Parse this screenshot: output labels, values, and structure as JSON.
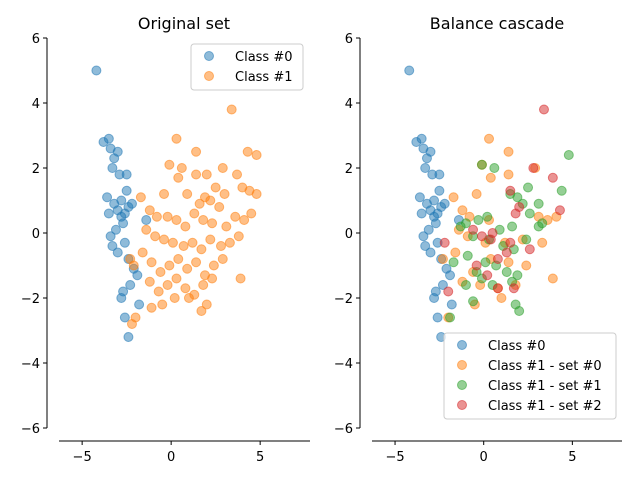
{
  "chart_data": [
    {
      "type": "scatter",
      "title": "Original set",
      "xlim": [
        -6.3,
        7.8
      ],
      "ylim": [
        -6,
        6
      ],
      "xticks": [
        -5,
        0,
        5
      ],
      "yticks": [
        -6,
        -4,
        -2,
        0,
        2,
        4,
        6
      ],
      "legend": "top-right",
      "series": [
        {
          "name": "Class #0",
          "color": "#1f77b4",
          "points": [
            [
              -4.2,
              5.0
            ],
            [
              -3.8,
              2.8
            ],
            [
              -3.5,
              2.9
            ],
            [
              -3.4,
              2.6
            ],
            [
              -3.2,
              2.3
            ],
            [
              -3.0,
              2.5
            ],
            [
              -3.3,
              2.0
            ],
            [
              -2.9,
              1.8
            ],
            [
              -2.5,
              1.8
            ],
            [
              -2.5,
              1.3
            ],
            [
              -2.8,
              1.0
            ],
            [
              -3.2,
              0.9
            ],
            [
              -3.0,
              0.7
            ],
            [
              -2.8,
              0.5
            ],
            [
              -2.6,
              0.6
            ],
            [
              -2.4,
              0.8
            ],
            [
              -2.7,
              0.3
            ],
            [
              -3.1,
              0.1
            ],
            [
              -3.4,
              -0.1
            ],
            [
              -3.3,
              -0.4
            ],
            [
              -3.0,
              -0.6
            ],
            [
              -2.6,
              -0.3
            ],
            [
              -2.4,
              -0.8
            ],
            [
              -2.1,
              -1.1
            ],
            [
              -1.9,
              -1.3
            ],
            [
              -2.3,
              -1.6
            ],
            [
              -2.7,
              -1.8
            ],
            [
              -2.8,
              -2.0
            ],
            [
              -2.6,
              -2.6
            ],
            [
              -2.4,
              -3.2
            ],
            [
              -1.8,
              -2.2
            ],
            [
              -1.4,
              0.4
            ],
            [
              -3.6,
              1.1
            ],
            [
              -3.5,
              0.6
            ],
            [
              -2.2,
              0.9
            ]
          ]
        },
        {
          "name": "Class #1",
          "color": "#ff7f0e",
          "points": [
            [
              3.4,
              3.8
            ],
            [
              0.3,
              2.9
            ],
            [
              1.4,
              2.5
            ],
            [
              4.3,
              2.5
            ],
            [
              4.8,
              2.4
            ],
            [
              -0.1,
              2.1
            ],
            [
              0.6,
              2.0
            ],
            [
              2.9,
              2.0
            ],
            [
              3.7,
              1.8
            ],
            [
              0.4,
              1.7
            ],
            [
              1.4,
              1.8
            ],
            [
              2.0,
              1.8
            ],
            [
              4.0,
              1.4
            ],
            [
              4.4,
              1.3
            ],
            [
              4.8,
              1.2
            ],
            [
              2.5,
              1.4
            ],
            [
              3.0,
              1.2
            ],
            [
              1.9,
              1.1
            ],
            [
              1.6,
              0.9
            ],
            [
              2.2,
              1.0
            ],
            [
              0.9,
              1.2
            ],
            [
              -0.4,
              1.2
            ],
            [
              -1.7,
              1.1
            ],
            [
              -1.2,
              0.7
            ],
            [
              -0.8,
              0.5
            ],
            [
              -0.2,
              0.5
            ],
            [
              0.3,
              0.4
            ],
            [
              0.8,
              0.2
            ],
            [
              1.3,
              0.6
            ],
            [
              1.8,
              0.4
            ],
            [
              2.3,
              0.3
            ],
            [
              2.7,
              0.8
            ],
            [
              3.1,
              0.2
            ],
            [
              3.6,
              0.5
            ],
            [
              4.1,
              0.4
            ],
            [
              4.5,
              0.6
            ],
            [
              -1.4,
              0.1
            ],
            [
              -0.9,
              -0.1
            ],
            [
              -0.4,
              -0.2
            ],
            [
              0.1,
              -0.3
            ],
            [
              0.7,
              -0.4
            ],
            [
              1.2,
              -0.3
            ],
            [
              1.7,
              -0.5
            ],
            [
              2.2,
              -0.2
            ],
            [
              2.8,
              -0.4
            ],
            [
              3.3,
              -0.3
            ],
            [
              3.8,
              -0.1
            ],
            [
              -1.6,
              -0.6
            ],
            [
              -1.1,
              -0.9
            ],
            [
              -0.6,
              -1.2
            ],
            [
              -0.1,
              -1.0
            ],
            [
              0.4,
              -0.8
            ],
            [
              0.9,
              -1.1
            ],
            [
              1.4,
              -0.9
            ],
            [
              1.9,
              -1.3
            ],
            [
              2.4,
              -1.0
            ],
            [
              2.9,
              -0.8
            ],
            [
              3.9,
              -1.4
            ],
            [
              -1.2,
              -1.5
            ],
            [
              -0.7,
              -1.8
            ],
            [
              -0.2,
              -1.6
            ],
            [
              0.3,
              -1.4
            ],
            [
              0.8,
              -1.7
            ],
            [
              1.3,
              -1.9
            ],
            [
              1.8,
              -1.6
            ],
            [
              2.3,
              -1.4
            ],
            [
              -0.5,
              -2.2
            ],
            [
              0.2,
              -2.0
            ],
            [
              1.0,
              -2.0
            ],
            [
              1.7,
              -2.4
            ],
            [
              2.0,
              -2.2
            ],
            [
              -2.0,
              -2.6
            ],
            [
              -1.1,
              -2.3
            ],
            [
              -2.2,
              -2.8
            ],
            [
              -2.3,
              -0.8
            ],
            [
              -2.1,
              -1.0
            ]
          ]
        }
      ]
    },
    {
      "type": "scatter",
      "title": "Balance cascade",
      "xlim": [
        -6.3,
        7.8
      ],
      "ylim": [
        -6,
        6
      ],
      "xticks": [
        -5,
        0,
        5
      ],
      "yticks": [
        -6,
        -4,
        -2,
        0,
        2,
        4,
        6
      ],
      "legend": "bottom-right",
      "series": [
        {
          "name": "Class #0",
          "color": "#1f77b4",
          "points": [
            [
              -4.2,
              5.0
            ],
            [
              -3.8,
              2.8
            ],
            [
              -3.5,
              2.9
            ],
            [
              -3.4,
              2.6
            ],
            [
              -3.2,
              2.3
            ],
            [
              -3.0,
              2.5
            ],
            [
              -3.3,
              2.0
            ],
            [
              -2.9,
              1.8
            ],
            [
              -2.5,
              1.8
            ],
            [
              -2.5,
              1.3
            ],
            [
              -2.8,
              1.0
            ],
            [
              -3.2,
              0.9
            ],
            [
              -3.0,
              0.7
            ],
            [
              -2.8,
              0.5
            ],
            [
              -2.6,
              0.6
            ],
            [
              -2.4,
              0.8
            ],
            [
              -2.7,
              0.3
            ],
            [
              -3.1,
              0.1
            ],
            [
              -3.4,
              -0.1
            ],
            [
              -3.3,
              -0.4
            ],
            [
              -3.0,
              -0.6
            ],
            [
              -2.6,
              -0.3
            ],
            [
              -2.4,
              -0.8
            ],
            [
              -2.1,
              -1.1
            ],
            [
              -1.9,
              -1.3
            ],
            [
              -2.3,
              -1.6
            ],
            [
              -2.7,
              -1.8
            ],
            [
              -2.8,
              -2.0
            ],
            [
              -2.6,
              -2.6
            ],
            [
              -2.4,
              -3.2
            ],
            [
              -1.8,
              -2.2
            ],
            [
              -1.4,
              0.4
            ],
            [
              -3.6,
              1.1
            ],
            [
              -3.5,
              0.6
            ],
            [
              -2.2,
              0.9
            ]
          ]
        },
        {
          "name": "Class #1 - set #0",
          "color": "#ff7f0e",
          "points": [
            [
              0.3,
              2.9
            ],
            [
              1.4,
              2.5
            ],
            [
              -0.1,
              2.1
            ],
            [
              2.9,
              2.0
            ],
            [
              0.4,
              1.7
            ],
            [
              1.4,
              1.8
            ],
            [
              -0.4,
              1.2
            ],
            [
              -1.7,
              1.1
            ],
            [
              -1.2,
              0.7
            ],
            [
              -0.8,
              0.5
            ],
            [
              0.3,
              0.4
            ],
            [
              3.1,
              0.5
            ],
            [
              3.6,
              0.4
            ],
            [
              4.1,
              0.5
            ],
            [
              -1.4,
              0.1
            ],
            [
              -0.9,
              -0.1
            ],
            [
              0.1,
              -0.3
            ],
            [
              1.2,
              -0.3
            ],
            [
              2.2,
              -0.2
            ],
            [
              3.3,
              -0.3
            ],
            [
              -1.6,
              -0.6
            ],
            [
              -0.6,
              -1.2
            ],
            [
              0.4,
              -0.8
            ],
            [
              1.4,
              -0.9
            ],
            [
              2.4,
              -1.0
            ],
            [
              3.9,
              -1.4
            ],
            [
              -1.2,
              -1.5
            ],
            [
              -0.2,
              -1.6
            ],
            [
              0.8,
              -1.7
            ],
            [
              1.8,
              -1.6
            ],
            [
              -0.5,
              -2.2
            ],
            [
              1.0,
              -2.0
            ],
            [
              -2.0,
              -2.6
            ],
            [
              -2.3,
              -0.8
            ]
          ]
        },
        {
          "name": "Class #1 - set #1",
          "color": "#2ca02c",
          "points": [
            [
              4.8,
              2.4
            ],
            [
              -0.1,
              2.1
            ],
            [
              0.6,
              2.0
            ],
            [
              2.5,
              1.4
            ],
            [
              4.4,
              1.3
            ],
            [
              1.9,
              1.1
            ],
            [
              2.2,
              0.9
            ],
            [
              -1.0,
              0.3
            ],
            [
              -0.3,
              0.4
            ],
            [
              0.2,
              0.5
            ],
            [
              0.9,
              0.1
            ],
            [
              1.6,
              0.2
            ],
            [
              2.6,
              0.6
            ],
            [
              3.1,
              0.2
            ],
            [
              -1.3,
              0.2
            ],
            [
              -0.6,
              -0.1
            ],
            [
              0.3,
              -0.2
            ],
            [
              1.1,
              -0.4
            ],
            [
              1.7,
              -0.5
            ],
            [
              2.4,
              -0.2
            ],
            [
              -0.9,
              -0.7
            ],
            [
              -0.4,
              -1.2
            ],
            [
              0.1,
              -0.9
            ],
            [
              0.7,
              -1.0
            ],
            [
              1.3,
              -1.2
            ],
            [
              1.9,
              -1.3
            ],
            [
              -1.0,
              -1.6
            ],
            [
              -0.1,
              -1.4
            ],
            [
              0.5,
              -1.6
            ],
            [
              1.6,
              -1.5
            ],
            [
              -0.6,
              -2.1
            ],
            [
              1.8,
              -2.2
            ],
            [
              2.0,
              -2.4
            ],
            [
              -1.9,
              -2.6
            ],
            [
              3.1,
              0.9
            ],
            [
              3.3,
              0.3
            ],
            [
              1.5,
              1.2
            ],
            [
              -1.7,
              -0.9
            ]
          ]
        },
        {
          "name": "Class #1 - set #2",
          "color": "#d62728",
          "points": [
            [
              3.4,
              3.8
            ],
            [
              2.8,
              2.0
            ],
            [
              4.3,
              0.7
            ],
            [
              3.9,
              1.7
            ],
            [
              1.5,
              1.3
            ],
            [
              2.0,
              0.8
            ],
            [
              1.8,
              0.6
            ],
            [
              -0.6,
              0.1
            ],
            [
              -0.1,
              -0.1
            ],
            [
              0.4,
              -0.2
            ],
            [
              1.3,
              -0.6
            ],
            [
              1.5,
              -0.3
            ],
            [
              2.6,
              -0.5
            ],
            [
              0.8,
              -0.8
            ],
            [
              -0.4,
              -1.0
            ],
            [
              0.2,
              -1.3
            ],
            [
              1.7,
              -1.7
            ],
            [
              0.8,
              -1.7
            ],
            [
              -2.0,
              -1.8
            ],
            [
              -2.2,
              -0.3
            ],
            [
              0.5,
              0.0
            ]
          ]
        }
      ]
    }
  ]
}
